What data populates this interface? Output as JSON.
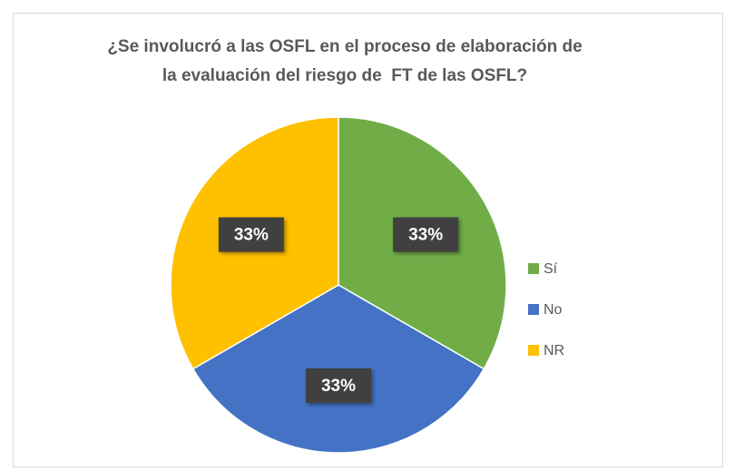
{
  "chart_data": {
    "type": "pie",
    "title": [
      "¿Se involucró a las OSFL en el proceso de elaboración de",
      "la evaluación del riesgo de  FT de las OSFL?"
    ],
    "categories": [
      "Sí",
      "No",
      "NR"
    ],
    "values": [
      33,
      33,
      33
    ],
    "value_labels": [
      "33%",
      "33%",
      "33%"
    ],
    "colors": [
      "#70ad47",
      "#4472c4",
      "#ffc000"
    ],
    "legend": "right"
  }
}
